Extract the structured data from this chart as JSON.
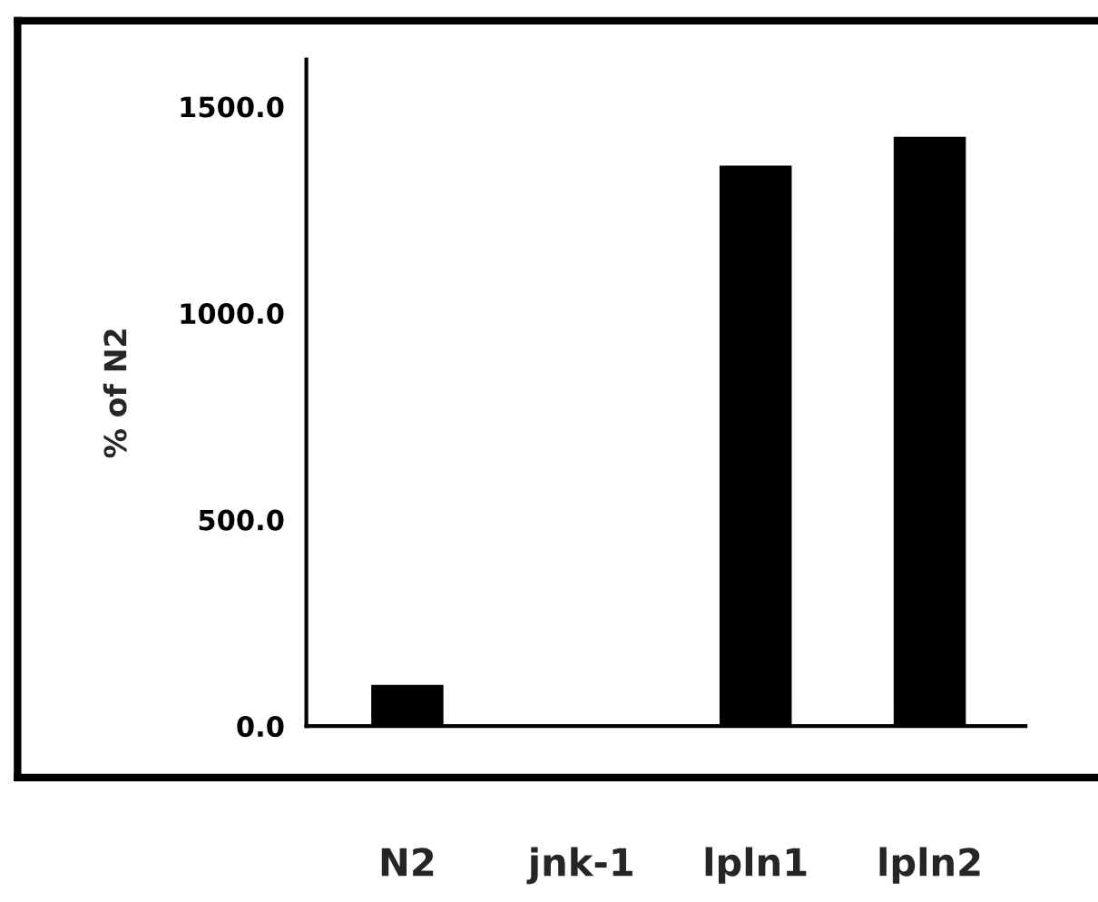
{
  "chart_data": {
    "type": "bar",
    "ylabel": "% of N2",
    "categories": [
      "N2",
      "jnk-1",
      "lpln1",
      "lpln2"
    ],
    "values": [
      97,
      0,
      1354,
      1424
    ],
    "color": "#000000",
    "ylim": [
      0,
      1614
    ],
    "yticks": [
      {
        "value": 0,
        "label": "0.0"
      },
      {
        "value": 500,
        "label": "500.0"
      },
      {
        "value": 1000,
        "label": "1000.0"
      },
      {
        "value": 1500,
        "label": "1500.0"
      }
    ],
    "grid": false,
    "legend": false
  }
}
